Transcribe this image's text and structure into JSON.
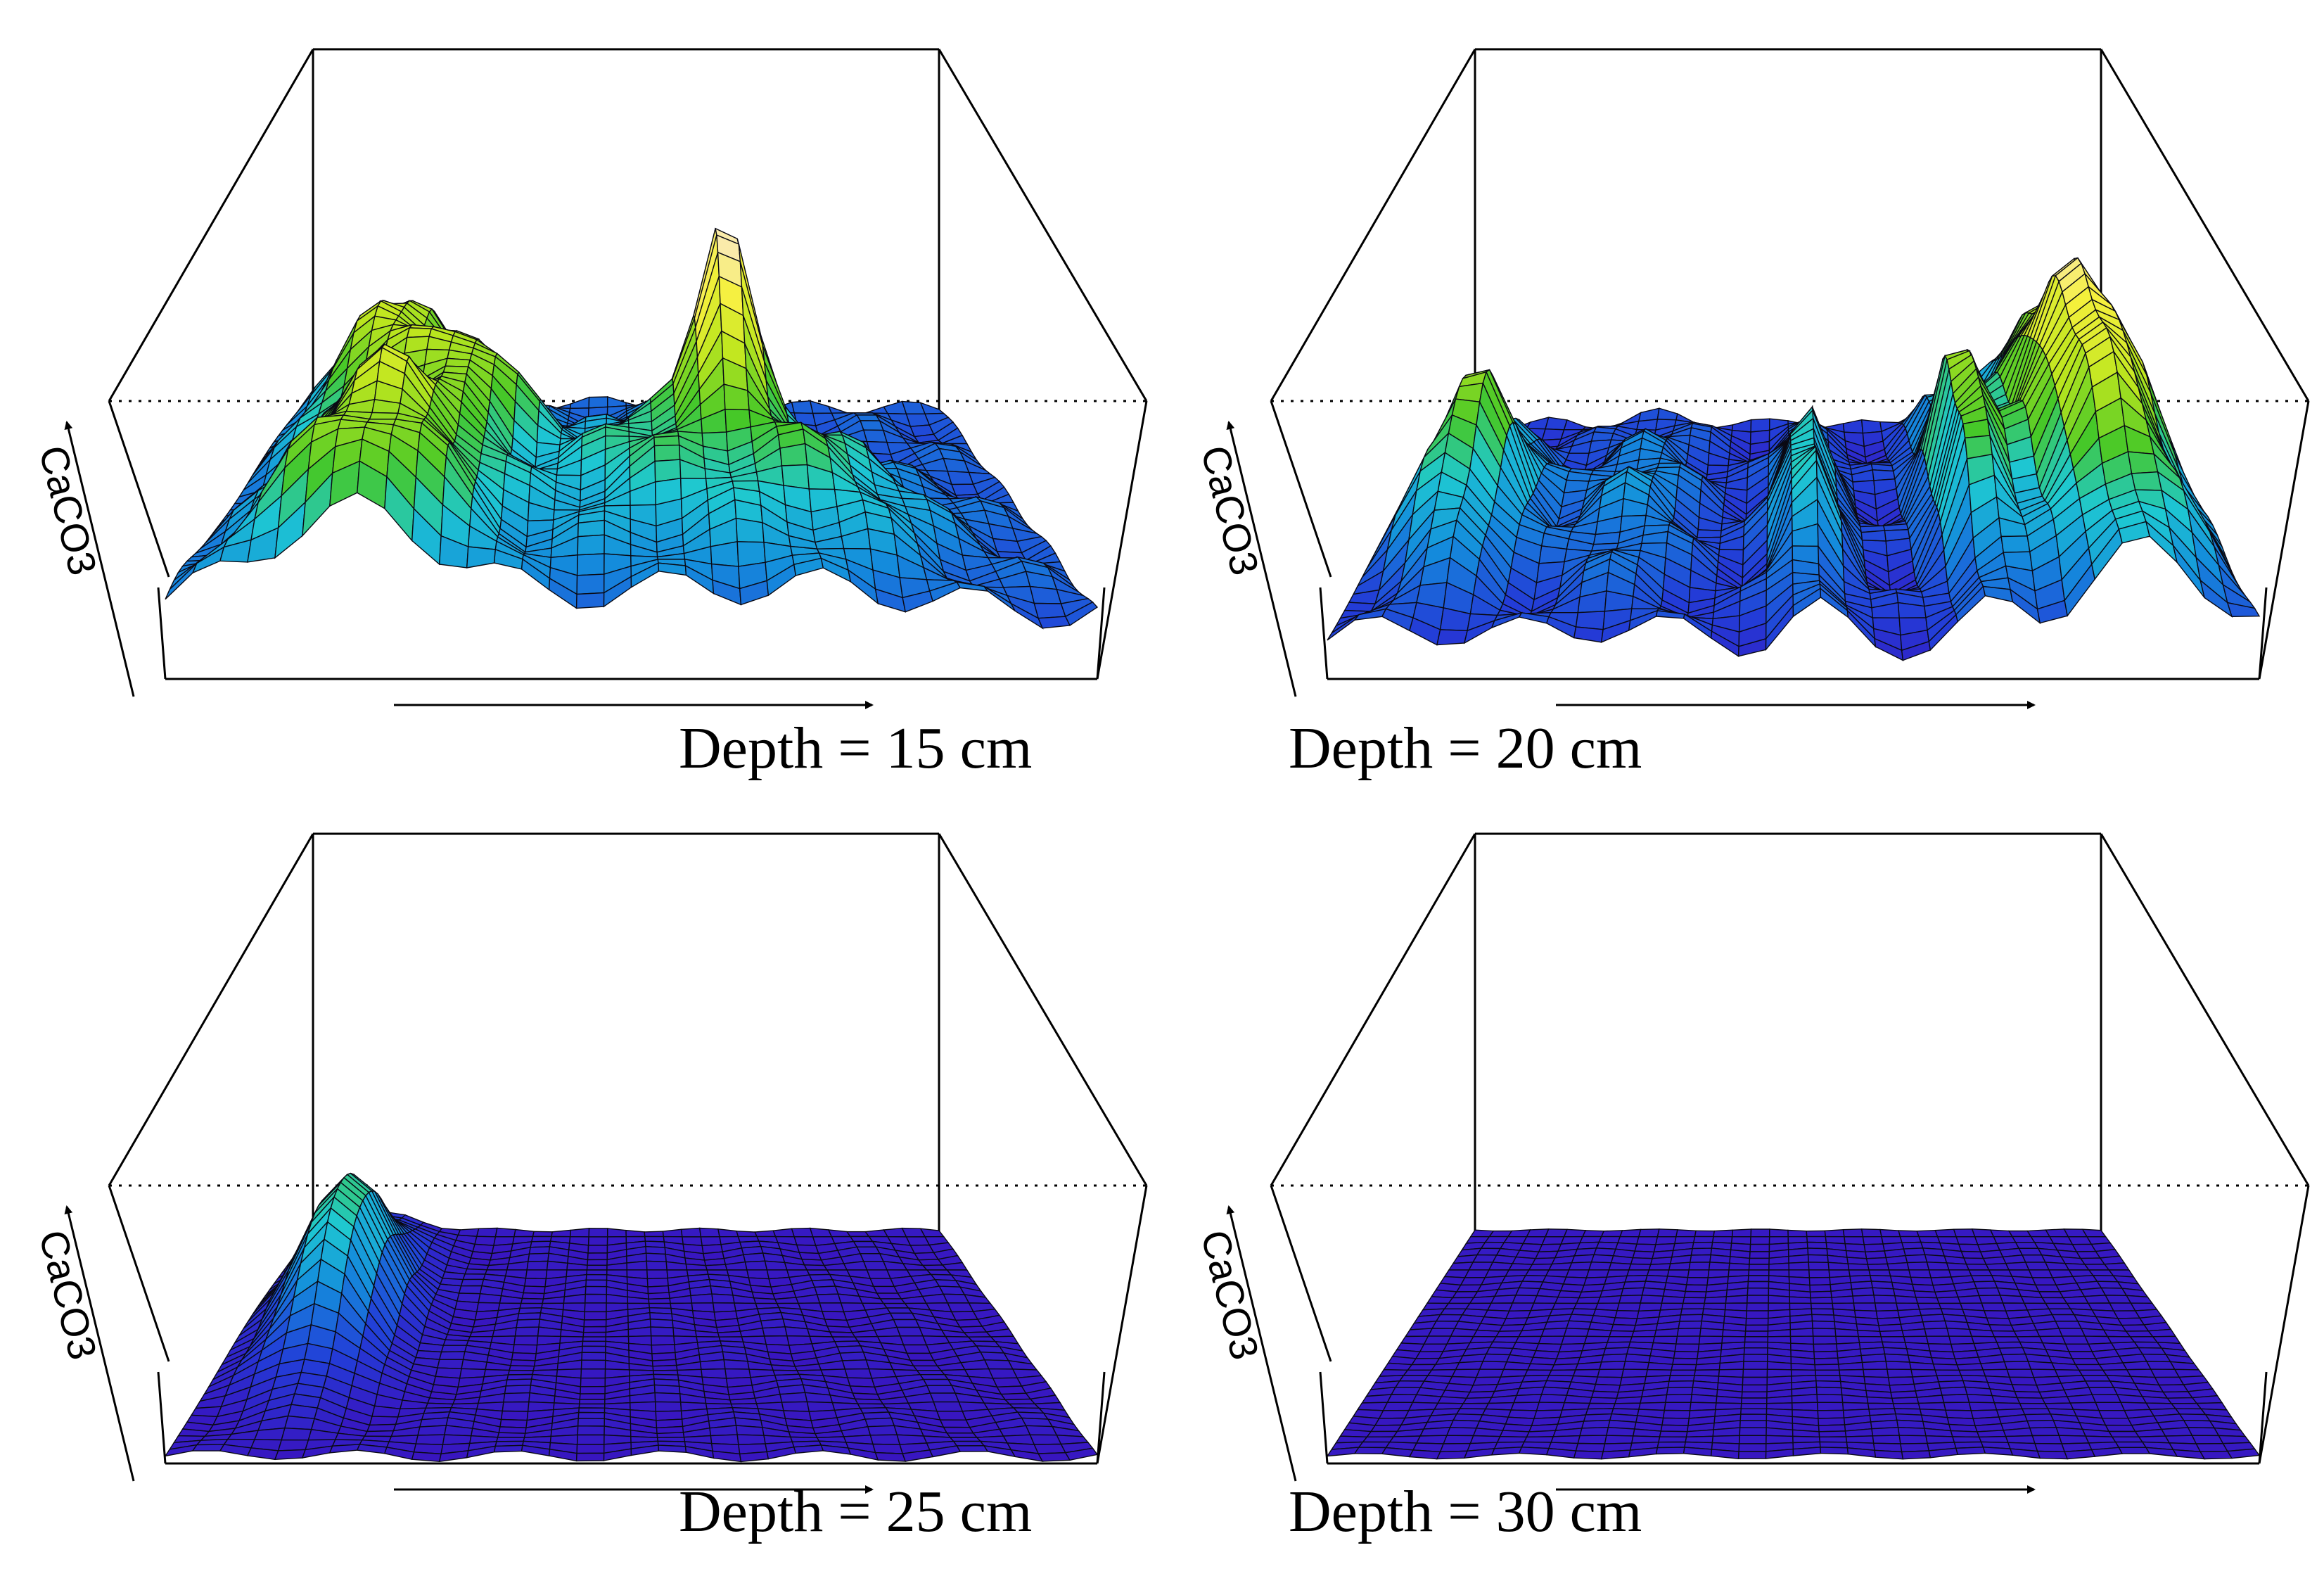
{
  "chart_data": [
    {
      "type": "surface",
      "zlabel": "CaCO3",
      "caption": "Depth = 15 cm",
      "surface": {
        "base": 0.18,
        "bumps": [
          {
            "u": 0.16,
            "v": 0.78,
            "amp": 0.55,
            "su": 0.08,
            "sv": 0.25
          },
          {
            "u": 0.3,
            "v": 0.6,
            "amp": 0.42,
            "su": 0.06,
            "sv": 0.12
          },
          {
            "u": 0.2,
            "v": 0.1,
            "amp": 0.45,
            "su": 0.1,
            "sv": 0.1
          },
          {
            "u": 0.22,
            "v": 0.32,
            "amp": 0.45,
            "su": 0.09,
            "sv": 0.1
          },
          {
            "u": 0.63,
            "v": 0.62,
            "amp": 0.78,
            "su": 0.035,
            "sv": 0.1
          },
          {
            "u": 0.72,
            "v": 0.35,
            "amp": 0.3,
            "su": 0.1,
            "sv": 0.2
          },
          {
            "u": 0.52,
            "v": 0.45,
            "amp": 0.28,
            "su": 0.1,
            "sv": 0.25
          }
        ],
        "ripple": 0.05
      }
    },
    {
      "type": "surface",
      "zlabel": "CaCO3",
      "caption": "Depth = 20 cm",
      "surface": {
        "base": 0.1,
        "bumps": [
          {
            "u": 0.88,
            "v": 0.55,
            "amp": 0.85,
            "su": 0.07,
            "sv": 0.35
          },
          {
            "u": 0.72,
            "v": 0.5,
            "amp": 0.55,
            "su": 0.03,
            "sv": 0.25
          },
          {
            "u": 0.1,
            "v": 0.45,
            "amp": 0.55,
            "su": 0.05,
            "sv": 0.2
          },
          {
            "u": 0.52,
            "v": 0.45,
            "amp": 0.4,
            "su": 0.03,
            "sv": 0.25
          },
          {
            "u": 0.3,
            "v": 0.5,
            "amp": 0.2,
            "su": 0.06,
            "sv": 0.3
          }
        ],
        "ripple": 0.05
      }
    },
    {
      "type": "surface",
      "zlabel": "CaCO3",
      "caption": "Depth = 25 cm",
      "surface": {
        "base": 0.02,
        "bumps": [
          {
            "u": 0.12,
            "v": 0.6,
            "amp": 0.5,
            "su": 0.05,
            "sv": 0.2
          }
        ],
        "ripple": 0.015
      }
    },
    {
      "type": "surface",
      "zlabel": "CaCO3",
      "caption": "Depth = 30 cm",
      "surface": {
        "base": 0.02,
        "bumps": [],
        "ripple": 0.008
      }
    }
  ]
}
